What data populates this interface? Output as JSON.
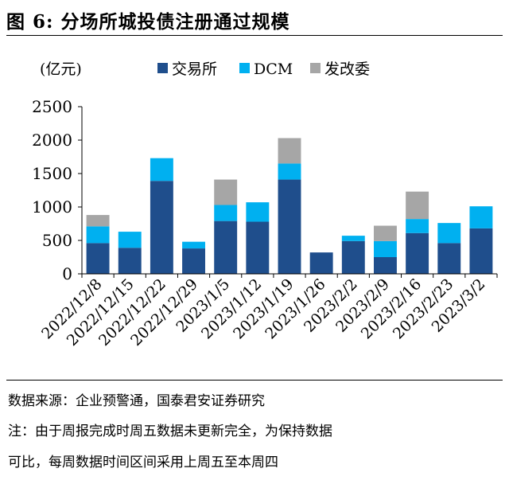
{
  "figure": {
    "title": "图 6:  分场所城投债注册通过规模"
  },
  "notes": {
    "source": "数据来源：企业预警通，国泰君安证券研究",
    "note_line1": "注：由于周报完成时周五数据未更新完全，为保持数据",
    "note_line2": "可比，每周数据时间区间采用上周五至本周四"
  },
  "chart_data": {
    "type": "bar",
    "stacked": true,
    "unit_label": "(亿元)",
    "categories": [
      "2022/12/8",
      "2022/12/15",
      "2022/12/22",
      "2022/12/29",
      "2023/1/5",
      "2023/1/12",
      "2023/1/19",
      "2023/1/26",
      "2023/2/2",
      "2023/2/9",
      "2023/2/16",
      "2023/2/23",
      "2023/3/2"
    ],
    "series": [
      {
        "name": "交易所",
        "color": "#1f4e8c",
        "values": [
          460,
          390,
          1390,
          380,
          790,
          780,
          1410,
          320,
          490,
          250,
          610,
          460,
          680
        ]
      },
      {
        "name": "DCM",
        "color": "#00b0f0",
        "values": [
          250,
          240,
          340,
          100,
          240,
          290,
          240,
          0,
          80,
          240,
          210,
          300,
          330
        ]
      },
      {
        "name": "发改委",
        "color": "#a6a6a6",
        "values": [
          170,
          0,
          0,
          0,
          380,
          0,
          380,
          0,
          0,
          230,
          410,
          0,
          0
        ]
      }
    ],
    "ylim": [
      0,
      2500
    ],
    "yticks": [
      0,
      500,
      1000,
      1500,
      2000,
      2500
    ],
    "legend_position": "top",
    "grid": false
  }
}
